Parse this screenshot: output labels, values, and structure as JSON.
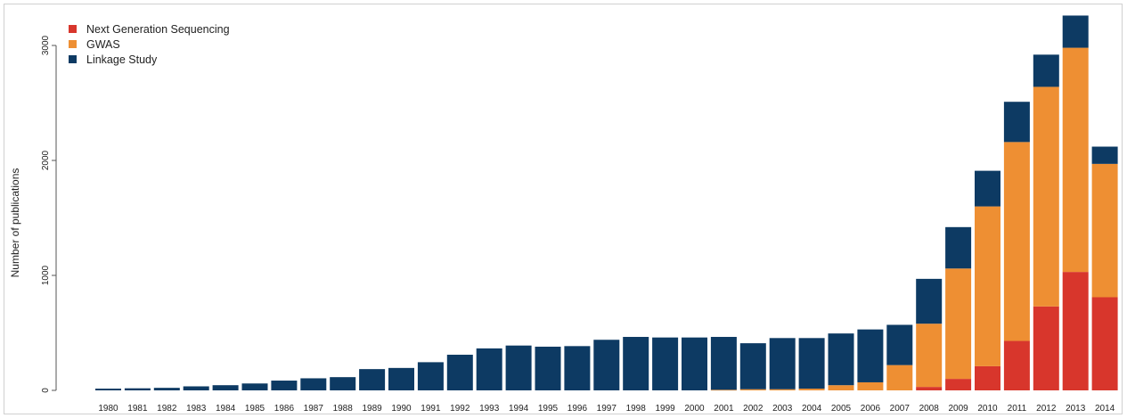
{
  "chart_data": {
    "type": "bar",
    "stacked": true,
    "ylabel": "Number of publications",
    "ylim": [
      0,
      3300
    ],
    "yticks": [
      0,
      1000,
      2000,
      3000
    ],
    "legend_position": "top-left",
    "grid": false,
    "categories": [
      "1980",
      "1981",
      "1982",
      "1983",
      "1984",
      "1985",
      "1986",
      "1987",
      "1988",
      "1989",
      "1990",
      "1991",
      "1992",
      "1993",
      "1994",
      "1995",
      "1996",
      "1997",
      "1998",
      "1999",
      "2000",
      "2001",
      "2002",
      "2003",
      "2004",
      "2005",
      "2006",
      "2007",
      "2008",
      "2009",
      "2010",
      "2011",
      "2012",
      "2013",
      "2014"
    ],
    "series": [
      {
        "name": "Next Generation Sequencing",
        "color": "#d8362c",
        "values": [
          0,
          0,
          0,
          0,
          0,
          0,
          0,
          0,
          0,
          0,
          0,
          0,
          0,
          0,
          0,
          0,
          0,
          0,
          0,
          0,
          0,
          0,
          0,
          0,
          0,
          0,
          0,
          0,
          30,
          100,
          210,
          430,
          730,
          1030,
          810
        ]
      },
      {
        "name": "GWAS",
        "color": "#ee8f33",
        "values": [
          0,
          0,
          0,
          0,
          0,
          0,
          0,
          0,
          0,
          0,
          0,
          0,
          0,
          0,
          0,
          0,
          0,
          0,
          0,
          0,
          0,
          5,
          10,
          10,
          15,
          45,
          70,
          220,
          550,
          960,
          1390,
          1730,
          1910,
          1950,
          1160
        ]
      },
      {
        "name": "Linkage Study",
        "color": "#0d3a63",
        "values": [
          15,
          18,
          22,
          35,
          45,
          60,
          85,
          105,
          115,
          185,
          195,
          245,
          310,
          365,
          390,
          380,
          385,
          440,
          465,
          460,
          460,
          460,
          400,
          445,
          440,
          450,
          460,
          350,
          390,
          360,
          310,
          350,
          280,
          280,
          150
        ]
      }
    ]
  }
}
